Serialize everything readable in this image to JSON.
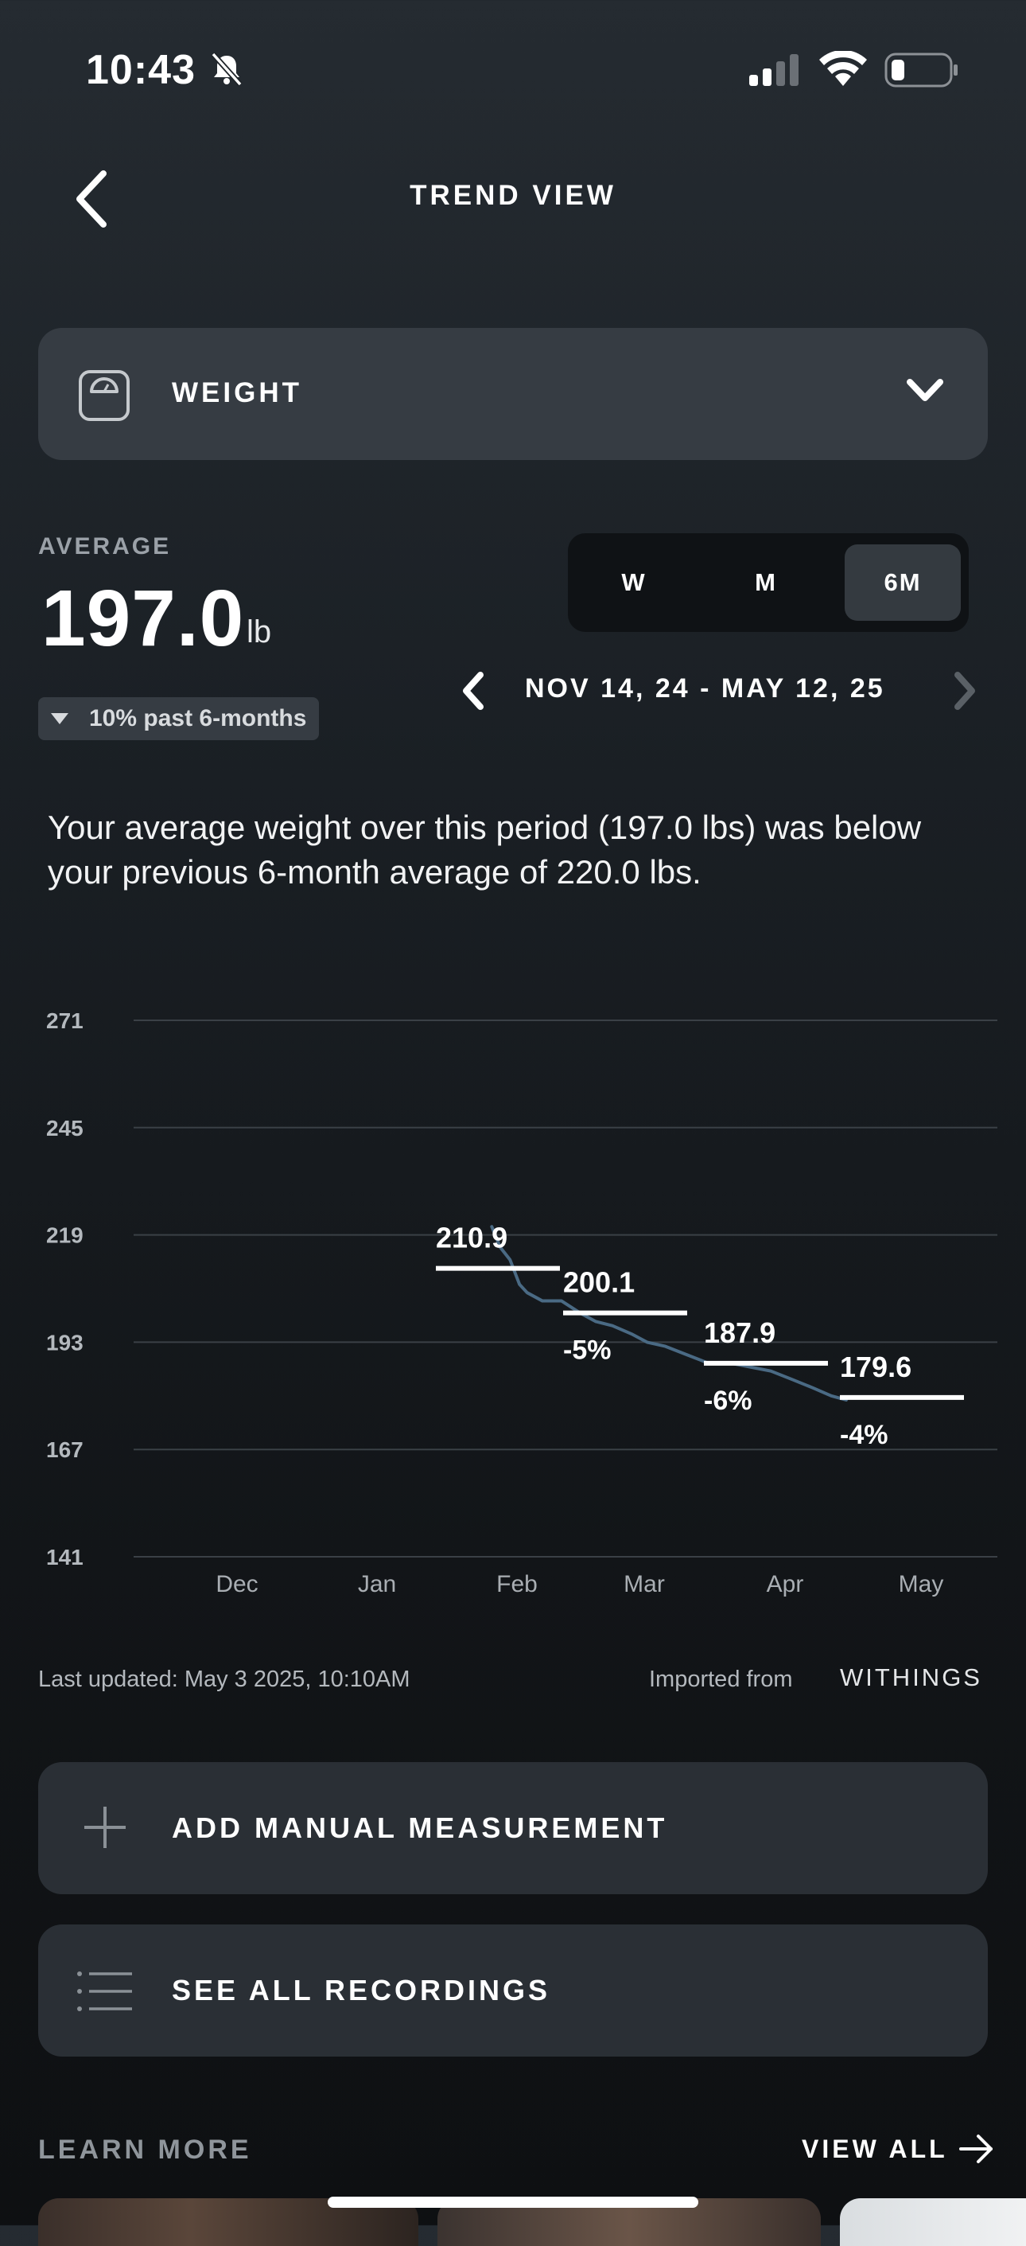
{
  "status_bar": {
    "time": "10:43"
  },
  "header": {
    "title": "TREND VIEW"
  },
  "metric_selector": {
    "label": "WEIGHT"
  },
  "average": {
    "label": "AVERAGE",
    "value": "197.0",
    "unit": "lb",
    "change_text": "10% past 6-months"
  },
  "period_tabs": [
    {
      "label": "W",
      "selected": false
    },
    {
      "label": "M",
      "selected": false
    },
    {
      "label": "6M",
      "selected": true
    }
  ],
  "date_range": "NOV 14, 24 - MAY 12, 25",
  "summary": "Your average weight over this period (197.0 lbs) was below your previous 6-month average of 220.0 lbs.",
  "chart_data": {
    "type": "line",
    "x_ticks": [
      "Dec",
      "Jan",
      "Feb",
      "Mar",
      "Apr",
      "May"
    ],
    "ylim": [
      141,
      271
    ],
    "y_ticks": [
      "271",
      "245",
      "219",
      "193",
      "167",
      "141"
    ],
    "grid": true,
    "monthly_averages": [
      {
        "month": "Feb",
        "value": 210.9,
        "label": "210.9",
        "change": ""
      },
      {
        "month": "Mar",
        "value": 200.1,
        "label": "200.1",
        "change": "-5%"
      },
      {
        "month": "Apr",
        "value": 187.9,
        "label": "187.9",
        "change": "-6%"
      },
      {
        "month": "May",
        "value": 179.6,
        "label": "179.6",
        "change": "-4%"
      }
    ],
    "series": [
      {
        "x": [
          1.82,
          1.88,
          1.95,
          2.02,
          2.08,
          2.2,
          2.35,
          2.5,
          2.62,
          2.75,
          2.9,
          3.02,
          3.15,
          3.3,
          3.45,
          3.6,
          3.75,
          3.9,
          4.05,
          4.2,
          4.34,
          4.45
        ],
        "values": [
          221,
          216,
          213,
          207,
          205,
          203,
          203,
          200,
          198,
          197,
          195,
          193,
          192,
          190,
          188,
          188,
          187,
          186,
          184,
          182,
          180,
          179
        ]
      }
    ]
  },
  "footer": {
    "last_updated": "Last updated: May 3 2025, 10:10AM",
    "imported_label": "Imported from",
    "source": "WITHINGS"
  },
  "actions": {
    "add_label": "ADD MANUAL MEASUREMENT",
    "recordings_label": "SEE ALL RECORDINGS"
  },
  "learn_more": {
    "title": "LEARN MORE",
    "view_all": "VIEW ALL"
  }
}
